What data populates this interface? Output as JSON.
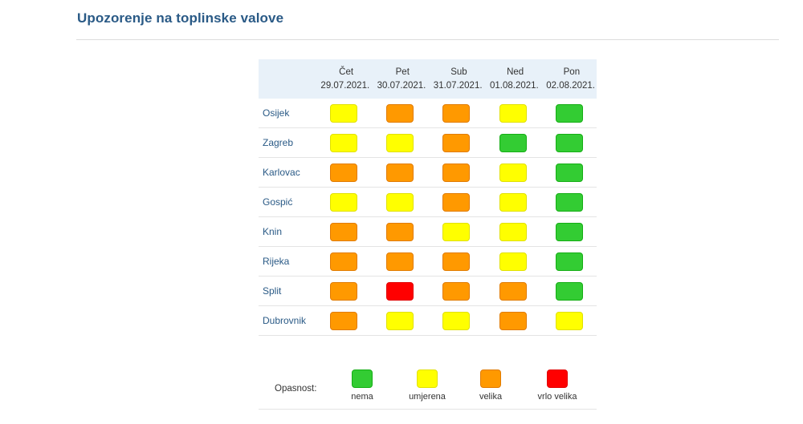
{
  "title": "Upozorenje na toplinske valove",
  "colors": {
    "nema": "#33cc33",
    "umjerena": "#ffff00",
    "velika": "#ff9900",
    "vrlo_velika": "#ff0000"
  },
  "days": [
    {
      "name": "Čet",
      "date": "29.07.2021."
    },
    {
      "name": "Pet",
      "date": "30.07.2021."
    },
    {
      "name": "Sub",
      "date": "31.07.2021."
    },
    {
      "name": "Ned",
      "date": "01.08.2021."
    },
    {
      "name": "Pon",
      "date": "02.08.2021."
    }
  ],
  "cities": [
    {
      "name": "Osijek",
      "levels": [
        "umjerena",
        "velika",
        "velika",
        "umjerena",
        "nema"
      ]
    },
    {
      "name": "Zagreb",
      "levels": [
        "umjerena",
        "umjerena",
        "velika",
        "nema",
        "nema"
      ]
    },
    {
      "name": "Karlovac",
      "levels": [
        "velika",
        "velika",
        "velika",
        "umjerena",
        "nema"
      ]
    },
    {
      "name": "Gospić",
      "levels": [
        "umjerena",
        "umjerena",
        "velika",
        "umjerena",
        "nema"
      ]
    },
    {
      "name": "Knin",
      "levels": [
        "velika",
        "velika",
        "umjerena",
        "umjerena",
        "nema"
      ]
    },
    {
      "name": "Rijeka",
      "levels": [
        "velika",
        "velika",
        "velika",
        "umjerena",
        "nema"
      ]
    },
    {
      "name": "Split",
      "levels": [
        "velika",
        "vrlo_velika",
        "velika",
        "velika",
        "nema"
      ]
    },
    {
      "name": "Dubrovnik",
      "levels": [
        "velika",
        "umjerena",
        "umjerena",
        "velika",
        "umjerena"
      ]
    }
  ],
  "legend": {
    "label": "Opasnost:",
    "items": [
      {
        "key": "nema",
        "label": "nema"
      },
      {
        "key": "umjerena",
        "label": "umjerena"
      },
      {
        "key": "velika",
        "label": "velika"
      },
      {
        "key": "vrlo_velika",
        "label": "vrlo velika"
      }
    ]
  }
}
